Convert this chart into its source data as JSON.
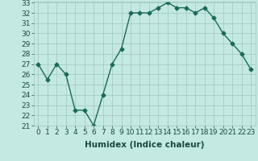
{
  "x": [
    0,
    1,
    2,
    3,
    4,
    5,
    6,
    7,
    8,
    9,
    10,
    11,
    12,
    13,
    14,
    15,
    16,
    17,
    18,
    19,
    20,
    21,
    22,
    23
  ],
  "y": [
    27,
    25.5,
    27,
    26,
    22.5,
    22.5,
    21,
    24,
    27,
    28.5,
    32,
    32,
    32,
    32.5,
    33,
    32.5,
    32.5,
    32,
    32.5,
    31.5,
    30,
    29,
    28,
    26.5
  ],
  "line_color": "#1a6b5a",
  "bg_color": "#c4e8e2",
  "grid_color": "#a0c8c0",
  "xlabel": "Humidex (Indice chaleur)",
  "ylim": [
    21,
    33
  ],
  "xlim": [
    -0.5,
    23.5
  ],
  "yticks": [
    21,
    22,
    23,
    24,
    25,
    26,
    27,
    28,
    29,
    30,
    31,
    32,
    33
  ],
  "xticks": [
    0,
    1,
    2,
    3,
    4,
    5,
    6,
    7,
    8,
    9,
    10,
    11,
    12,
    13,
    14,
    15,
    16,
    17,
    18,
    19,
    20,
    21,
    22,
    23
  ],
  "xtick_labels": [
    "0",
    "1",
    "2",
    "3",
    "4",
    "5",
    "6",
    "7",
    "8",
    "9",
    "10",
    "11",
    "12",
    "13",
    "14",
    "15",
    "16",
    "17",
    "18",
    "19",
    "20",
    "21",
    "22",
    "23"
  ],
  "marker": "D",
  "marker_size": 2.5,
  "line_width": 1.0,
  "xlabel_fontsize": 7.5,
  "tick_fontsize": 6.5
}
